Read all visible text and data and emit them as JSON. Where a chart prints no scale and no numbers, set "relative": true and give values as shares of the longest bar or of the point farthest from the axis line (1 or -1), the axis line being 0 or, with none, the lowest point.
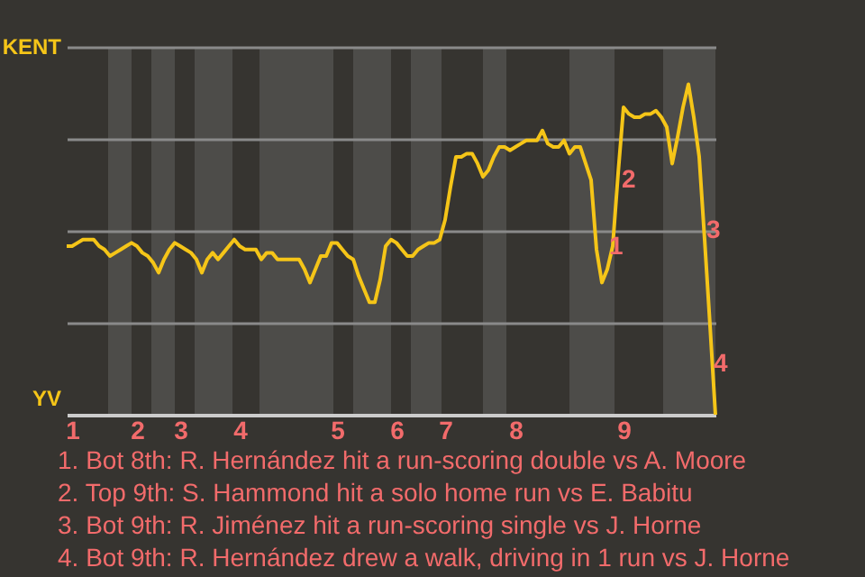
{
  "chart_data": {
    "type": "line",
    "categories": [
      null,
      "1",
      null,
      null,
      null,
      null,
      null,
      null,
      null,
      null,
      null,
      null,
      null,
      "2",
      null,
      null,
      null,
      null,
      null,
      null,
      null,
      "3",
      null,
      null,
      null,
      null,
      null,
      null,
      null,
      null,
      null,
      null,
      "4",
      null,
      null,
      null,
      null,
      null,
      null,
      null,
      null,
      null,
      null,
      null,
      null,
      null,
      null,
      null,
      null,
      null,
      "5",
      null,
      null,
      null,
      null,
      null,
      null,
      null,
      null,
      null,
      null,
      "6",
      null,
      null,
      null,
      null,
      null,
      null,
      null,
      null,
      "7",
      null,
      null,
      null,
      null,
      null,
      null,
      null,
      null,
      null,
      null,
      null,
      null,
      "8",
      null,
      null,
      null,
      null,
      null,
      null,
      null,
      null,
      null,
      null,
      null,
      null,
      null,
      null,
      null,
      null,
      null,
      null,
      null,
      "9",
      null,
      null,
      null,
      null,
      null,
      null,
      null,
      null,
      null,
      null,
      null,
      null,
      null,
      null,
      null,
      null,
      null
    ],
    "series": [
      {
        "color": "#f5c518",
        "values": [
          0.51,
          0.51,
          0.52,
          0.53,
          0.53,
          0.53,
          0.51,
          0.5,
          0.48,
          0.49,
          0.5,
          0.51,
          0.52,
          0.51,
          0.49,
          0.48,
          0.46,
          0.43,
          0.47,
          0.5,
          0.52,
          0.51,
          0.5,
          0.49,
          0.47,
          0.43,
          0.47,
          0.49,
          0.47,
          0.49,
          0.51,
          0.53,
          0.51,
          0.5,
          0.5,
          0.5,
          0.47,
          0.49,
          0.49,
          0.47,
          0.47,
          0.47,
          0.47,
          0.47,
          0.44,
          0.4,
          0.44,
          0.48,
          0.48,
          0.52,
          0.52,
          0.5,
          0.48,
          0.47,
          0.42,
          0.38,
          0.34,
          0.34,
          0.41,
          0.51,
          0.53,
          0.52,
          0.5,
          0.48,
          0.48,
          0.5,
          0.51,
          0.52,
          0.52,
          0.53,
          0.59,
          0.69,
          0.78,
          0.78,
          0.79,
          0.79,
          0.76,
          0.72,
          0.74,
          0.78,
          0.81,
          0.81,
          0.8,
          0.81,
          0.82,
          0.83,
          0.83,
          0.83,
          0.86,
          0.82,
          0.81,
          0.81,
          0.83,
          0.79,
          0.81,
          0.81,
          0.76,
          0.71,
          0.5,
          0.4,
          0.44,
          0.51,
          0.73,
          0.93,
          0.91,
          0.9,
          0.9,
          0.91,
          0.91,
          0.92,
          0.9,
          0.87,
          0.76,
          0.84,
          0.93,
          1,
          0.9,
          0.78,
          0.53,
          0.27,
          0
        ]
      }
    ],
    "relative": true,
    "grid": "y",
    "marker": "none",
    "annotations": [
      "KENT",
      "YV",
      "1",
      "2",
      "3",
      "4",
      "1. Bot 8th: R. Hernández hit a run-scoring double vs A. Moore",
      "2. Top 9th: S. Hammond hit a solo home run vs E. Babitu",
      "3. Bot 9th: R. Jiménez hit a run-scoring single vs J. Horne",
      "4. Bot 9th: R. Hernández drew a walk, driving in 1 run vs J. Horne"
    ]
  }
}
